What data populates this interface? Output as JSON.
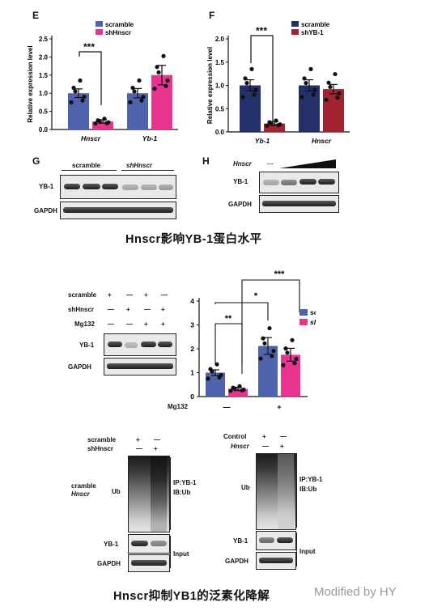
{
  "panel_e": {
    "letter": "E",
    "ylabel": "Relative expression level",
    "yticks": [
      "0.0",
      "0.5",
      "1.0",
      "1.5",
      "2.0",
      "2.5"
    ],
    "legend": [
      "scramble",
      "shHnscr"
    ],
    "sig": "***",
    "colors": {
      "scramble": "#4f63ad",
      "sh": "#e9338f"
    },
    "chart_data": {
      "type": "bar",
      "categories": [
        "Hnscr",
        "Yb-1"
      ],
      "series": [
        {
          "name": "scramble",
          "values": [
            1.0,
            1.0
          ],
          "sem": [
            0.12,
            0.13
          ]
        },
        {
          "name": "shHnscr",
          "values": [
            0.22,
            1.5
          ],
          "sem": [
            0.05,
            0.27
          ]
        }
      ],
      "ylabel": "Relative expression level",
      "ylim": [
        0,
        2.5
      ]
    }
  },
  "panel_f": {
    "letter": "F",
    "ylabel": "Relative expression level",
    "yticks": [
      "0.0",
      "0.5",
      "1.0",
      "1.5",
      "2.0"
    ],
    "legend": [
      "scramble",
      "shYB-1"
    ],
    "sig": "***",
    "colors": {
      "scramble": "#24306a",
      "sh": "#a32330"
    },
    "chart_data": {
      "type": "bar",
      "categories": [
        "Yb-1",
        "Hnscr"
      ],
      "series": [
        {
          "name": "scramble",
          "values": [
            1.0,
            1.0
          ],
          "sem": [
            0.12,
            0.12
          ]
        },
        {
          "name": "shYB-1",
          "values": [
            0.18,
            0.92
          ],
          "sem": [
            0.04,
            0.1
          ]
        }
      ],
      "ylabel": "Relative expression level",
      "ylim": [
        0,
        2.0
      ]
    }
  },
  "panel_g": {
    "letter": "G",
    "groups": [
      "scramble",
      "shHnscr"
    ],
    "rows": [
      "YB-1",
      "GAPDH"
    ]
  },
  "panel_h": {
    "letter": "H",
    "treatment": "Hnscr",
    "dash": "—",
    "rows": [
      "YB-1",
      "GAPDH"
    ]
  },
  "caption1": "Hnscr影响YB-1蛋白水平",
  "mg_blot": {
    "conditions": [
      {
        "label": "scramble",
        "marks": [
          "+",
          "—",
          "+",
          "—"
        ]
      },
      {
        "label": "shHnscr",
        "marks": [
          "—",
          "+",
          "—",
          "+"
        ]
      },
      {
        "label": "Mg132",
        "marks": [
          "—",
          "—",
          "+",
          "+"
        ]
      }
    ],
    "rows": [
      "YB-1",
      "GAPDH"
    ]
  },
  "mg_chart": {
    "yticks": [
      "0",
      "1",
      "2",
      "3",
      "4"
    ],
    "legend": [
      "scran",
      "shHn"
    ],
    "xlabel": "Mg132",
    "xcats": [
      "—",
      "+"
    ],
    "sig": [
      "**",
      "*",
      "***"
    ],
    "chart_data": {
      "type": "bar",
      "categories": [
        "—",
        "+"
      ],
      "series": [
        {
          "name": "scran",
          "values": [
            1.0,
            2.12
          ],
          "sem": [
            0.12,
            0.35
          ]
        },
        {
          "name": "shHn",
          "values": [
            0.32,
            1.75
          ],
          "sem": [
            0.07,
            0.27
          ]
        }
      ],
      "xlabel": "Mg132",
      "ylim": [
        0,
        4
      ]
    }
  },
  "ub_left": {
    "conditions": [
      {
        "label": "scramble",
        "marks": [
          "+",
          "—"
        ]
      },
      {
        "label": "shHnscr",
        "marks": [
          "—",
          "+"
        ]
      }
    ],
    "side": [
      "cramble",
      "Hnscr"
    ],
    "ub": "Ub",
    "ip": "IP:YB-1",
    "ib": "IB:Ub",
    "rows": [
      "YB-1",
      "GAPDH"
    ],
    "input": "Input"
  },
  "ub_right": {
    "conditions": [
      {
        "label": "Control",
        "marks": [
          "+",
          "—"
        ]
      },
      {
        "label": "Hnscr",
        "marks": [
          "—",
          "+"
        ]
      }
    ],
    "ub": "Ub",
    "ip": "IP:YB-1",
    "ib": "IB:Ub",
    "rows": [
      "YB-1",
      "GAPDH"
    ],
    "input": "Input"
  },
  "caption2": "Hnscr抑制YB1的泛素化降解",
  "watermark": "Modified by HY"
}
